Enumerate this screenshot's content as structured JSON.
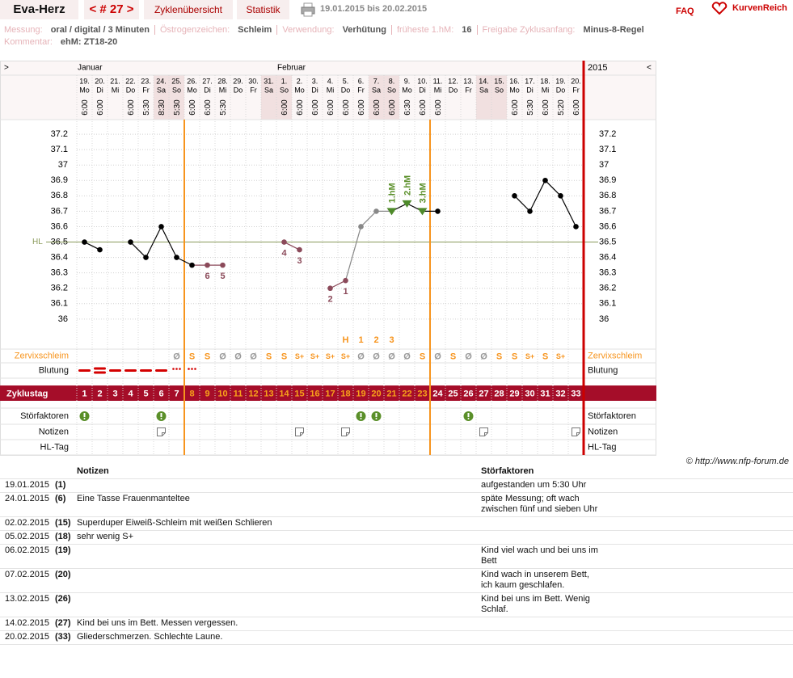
{
  "header": {
    "name": "Eva-Herz",
    "cycle_nav": "< # 27 >",
    "tabs": [
      "Zyklenübersicht",
      "Statistik"
    ],
    "range": "19.01.2015 bis 20.02.2015",
    "faq": "FAQ",
    "logo": "KurvenReich"
  },
  "info": {
    "rows": [
      [
        {
          "label": "Messung:",
          "value": "oral / digital / 3 Minuten"
        },
        {
          "label": "Östrogenzeichen:",
          "value": "Schleim"
        },
        {
          "label": "Verwendung:",
          "value": "Verhütung"
        },
        {
          "label": "früheste 1.hM:",
          "value": "16"
        },
        {
          "label": "Freigabe Zyklusanfang:",
          "value": "Minus-8-Regel"
        }
      ],
      [
        {
          "label": "Kommentar:",
          "value": "ehM: ZT18-20"
        }
      ]
    ]
  },
  "chart_data": {
    "type": "line",
    "nav_left": ">",
    "nav_right": "<",
    "year": "2015",
    "months": [
      "Januar",
      "Februar"
    ],
    "dates": [
      "19.",
      "20.",
      "21.",
      "22.",
      "23.",
      "24.",
      "25.",
      "26.",
      "27.",
      "28.",
      "29.",
      "30.",
      "31.",
      "1.",
      "2.",
      "3.",
      "4.",
      "5.",
      "6.",
      "7.",
      "8.",
      "9.",
      "10.",
      "11.",
      "12.",
      "13.",
      "14.",
      "15.",
      "16.",
      "17.",
      "18.",
      "19.",
      "20."
    ],
    "weekdays": [
      "Mo",
      "Di",
      "Mi",
      "Do",
      "Fr",
      "Sa",
      "So",
      "Mo",
      "Di",
      "Mi",
      "Do",
      "Fr",
      "Sa",
      "So",
      "Mo",
      "Di",
      "Mi",
      "Do",
      "Fr",
      "Sa",
      "So",
      "Mo",
      "Di",
      "Mi",
      "Do",
      "Fr",
      "Sa",
      "So",
      "Mo",
      "Di",
      "Mi",
      "Do",
      "Fr"
    ],
    "times": [
      "6:00",
      "6:00",
      null,
      "6:00",
      "5:30",
      "8:30",
      "5:30",
      "6:00",
      "6:00",
      "5:30",
      null,
      null,
      null,
      "6:00",
      "6:00",
      "6:00",
      "6:00",
      "6:00",
      "6:00",
      "6:00",
      "6:00",
      "6:30",
      "6:00",
      "6:00",
      null,
      null,
      null,
      null,
      "6:00",
      "5:30",
      "6:00",
      "5:20",
      "6:00"
    ],
    "cycle_days": [
      1,
      2,
      3,
      4,
      5,
      6,
      7,
      8,
      9,
      10,
      11,
      12,
      13,
      14,
      15,
      16,
      17,
      18,
      19,
      20,
      21,
      22,
      23,
      24,
      25,
      26,
      27,
      28,
      29,
      30,
      31,
      32,
      33
    ],
    "values": [
      36.5,
      36.45,
      null,
      36.5,
      36.4,
      36.6,
      36.4,
      36.35,
      36.35,
      36.35,
      null,
      null,
      null,
      36.5,
      36.45,
      null,
      36.2,
      36.25,
      36.6,
      36.7,
      36.7,
      36.75,
      36.7,
      36.7,
      null,
      null,
      null,
      null,
      36.8,
      36.7,
      36.9,
      36.8,
      36.6
    ],
    "point_colors": [
      "#000",
      "#000",
      null,
      "#000",
      "#000",
      "#000",
      "#000",
      "#000",
      "#8b4a5a",
      "#8b4a5a",
      null,
      null,
      null,
      "#8b4a5a",
      "#8b4a5a",
      null,
      "#8b4a5a",
      "#8b4a5a",
      "#888",
      "#888",
      "#4e8a2a",
      "#4e8a2a",
      "#4e8a2a",
      "#000",
      null,
      null,
      null,
      null,
      "#000",
      "#000",
      "#000",
      "#000",
      "#000"
    ],
    "ylim": [
      35.8,
      37.3
    ],
    "yticks": [
      37.2,
      37.1,
      37,
      36.9,
      36.8,
      36.7,
      36.6,
      36.5,
      36.4,
      36.3,
      36.2,
      36.1,
      36
    ],
    "grid": true,
    "hl": {
      "label": "HL",
      "value": 36.5,
      "color": "#8a9a5b"
    },
    "annotations": [
      {
        "day": 9,
        "text": "6"
      },
      {
        "day": 10,
        "text": "5"
      },
      {
        "day": 14,
        "text": "4"
      },
      {
        "day": 15,
        "text": "3"
      },
      {
        "day": 17,
        "text": "2"
      },
      {
        "day": 18,
        "text": "1"
      }
    ],
    "hm_labels": [
      {
        "day": 21,
        "text": "1.hM"
      },
      {
        "day": 22,
        "text": "2.hM"
      },
      {
        "day": 23,
        "text": "3.hM"
      }
    ],
    "peak_labels": [
      {
        "day": 18,
        "text": "H"
      },
      {
        "day": 19,
        "text": "1"
      },
      {
        "day": 20,
        "text": "2"
      },
      {
        "day": 21,
        "text": "3"
      }
    ],
    "cycle_lines": [
      7,
      23
    ],
    "mucus": {
      "label": "Zervixschleim",
      "values": [
        null,
        null,
        null,
        null,
        null,
        null,
        "Ø",
        "S",
        "S",
        "Ø",
        "Ø",
        "Ø",
        "S",
        "S",
        "S+",
        "S+",
        "S+",
        "S+",
        "Ø",
        "Ø",
        "Ø",
        "Ø",
        "S",
        "Ø",
        "S",
        "Ø",
        "Ø",
        "S",
        "S",
        "S+",
        "S",
        "S+",
        null
      ]
    },
    "bleeding": {
      "label": "Blutung",
      "values": [
        2,
        3,
        2,
        2,
        2,
        2,
        1,
        1,
        null,
        null,
        null,
        null,
        null,
        null,
        null,
        null,
        null,
        null,
        null,
        null,
        null,
        null,
        null,
        null,
        null,
        null,
        null,
        null,
        null,
        null,
        null,
        null,
        null
      ]
    },
    "cycle_day_label": "Zyklustag",
    "disturbances": {
      "label": "Störfaktoren",
      "days": [
        1,
        6,
        19,
        20,
        26
      ]
    },
    "notes": {
      "label": "Notizen",
      "days": [
        6,
        15,
        18,
        27,
        33
      ]
    },
    "hl_day": {
      "label": "HL-Tag"
    }
  },
  "copyright": "© http://www.nfp-forum.de",
  "notes_table": {
    "headers": [
      "Notizen",
      "Störfaktoren"
    ],
    "rows": [
      {
        "date": "19.01.2015",
        "day": "(1)",
        "note": null,
        "disturbance": "aufgestanden um 5:30 Uhr"
      },
      {
        "date": "24.01.2015",
        "day": "(6)",
        "note": "Eine Tasse Frauenmanteltee",
        "disturbance": "späte Messung; oft wach zwischen fünf und sieben Uhr"
      },
      {
        "date": "02.02.2015",
        "day": "(15)",
        "note": "Superduper Eiweiß-Schleim mit weißen Schlieren",
        "disturbance": null
      },
      {
        "date": "05.02.2015",
        "day": "(18)",
        "note": "sehr wenig S+",
        "disturbance": null
      },
      {
        "date": "06.02.2015",
        "day": "(19)",
        "note": null,
        "disturbance": "Kind viel wach und bei uns im Bett"
      },
      {
        "date": "07.02.2015",
        "day": "(20)",
        "note": null,
        "disturbance": "Kind wach in unserem Bett, ich kaum geschlafen."
      },
      {
        "date": "13.02.2015",
        "day": "(26)",
        "note": null,
        "disturbance": "Kind bei uns im Bett. Wenig Schlaf."
      },
      {
        "date": "14.02.2015",
        "day": "(27)",
        "note": "Kind bei uns im Bett. Messen vergessen.",
        "disturbance": null
      },
      {
        "date": "20.02.2015",
        "day": "(33)",
        "note": "Gliederschmerzen. Schlechte Laune.",
        "disturbance": null
      }
    ]
  }
}
